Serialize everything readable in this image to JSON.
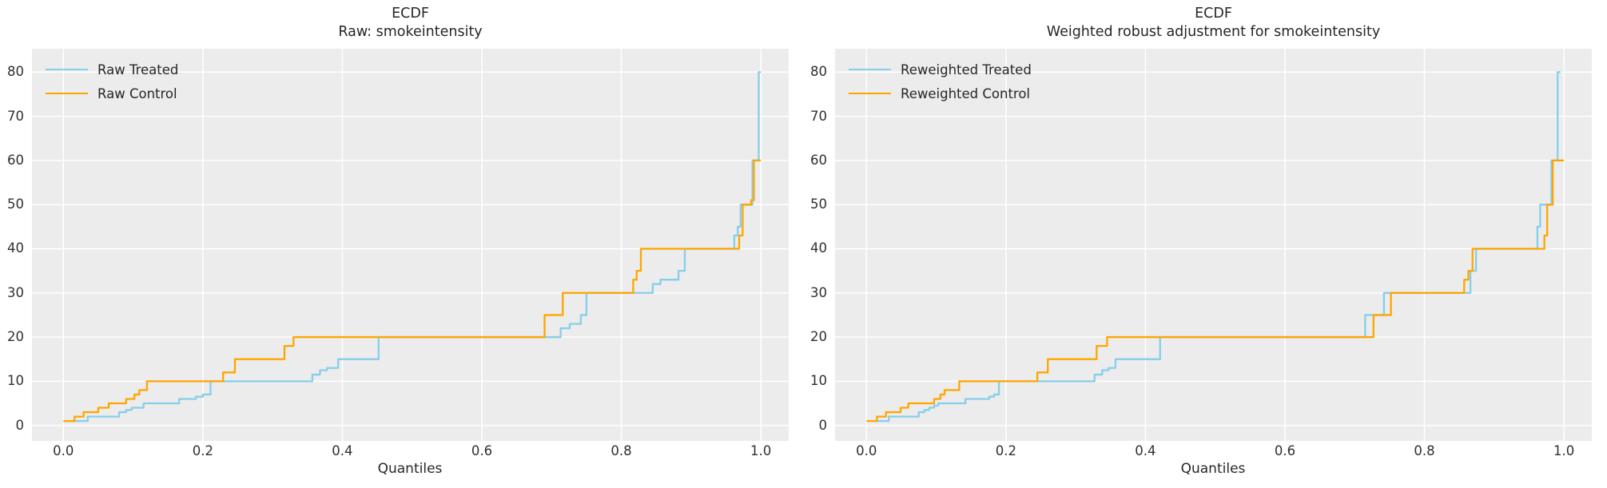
{
  "figure": {
    "background": "#ffffff",
    "plot_background": "#ececec",
    "grid_color": "#ffffff",
    "text_color": "#262626",
    "treated_color": "#87CEEB",
    "control_color": "#FFA500"
  },
  "chart_data": [
    {
      "type": "line",
      "subtype": "ecdf-step-quantile",
      "title": "ECDF",
      "subtitle": "Raw: smokeintensity",
      "xlabel": "Quantiles",
      "ylabel": "",
      "grid": true,
      "legend_position": "upper-left",
      "xlim": [
        -0.045,
        1.04
      ],
      "ylim": [
        -3.5,
        85.3
      ],
      "xticks": [
        0.0,
        0.2,
        0.4,
        0.6,
        0.8,
        1.0
      ],
      "xtick_labels": [
        "0.0",
        "0.2",
        "0.4",
        "0.6",
        "0.8",
        "1.0"
      ],
      "yticks": [
        0,
        10,
        20,
        30,
        40,
        50,
        60,
        70,
        80
      ],
      "ytick_labels": [
        "0",
        "10",
        "20",
        "30",
        "40",
        "50",
        "60",
        "70",
        "80"
      ],
      "series": [
        {
          "name": "Raw Treated",
          "color": "#87CEEB",
          "points": [
            [
              0.005,
              1
            ],
            [
              0.035,
              2
            ],
            [
              0.08,
              3
            ],
            [
              0.09,
              3.5
            ],
            [
              0.098,
              4
            ],
            [
              0.115,
              5
            ],
            [
              0.166,
              6
            ],
            [
              0.19,
              6.5
            ],
            [
              0.2,
              7
            ],
            [
              0.211,
              10
            ],
            [
              0.357,
              11.5
            ],
            [
              0.368,
              12.5
            ],
            [
              0.378,
              13
            ],
            [
              0.394,
              15
            ],
            [
              0.452,
              20
            ],
            [
              0.713,
              22
            ],
            [
              0.726,
              23
            ],
            [
              0.742,
              25
            ],
            [
              0.75,
              30
            ],
            [
              0.845,
              32
            ],
            [
              0.856,
              33
            ],
            [
              0.882,
              35
            ],
            [
              0.891,
              40
            ],
            [
              0.962,
              43
            ],
            [
              0.967,
              45
            ],
            [
              0.971,
              50
            ],
            [
              0.988,
              60
            ],
            [
              0.997,
              80
            ],
            [
              1.0,
              80
            ]
          ]
        },
        {
          "name": "Raw Control",
          "color": "#FFA500",
          "points": [
            [
              0.0,
              1
            ],
            [
              0.016,
              2
            ],
            [
              0.029,
              3
            ],
            [
              0.05,
              4
            ],
            [
              0.065,
              5
            ],
            [
              0.09,
              6
            ],
            [
              0.102,
              7
            ],
            [
              0.109,
              8
            ],
            [
              0.12,
              10
            ],
            [
              0.229,
              12
            ],
            [
              0.246,
              15
            ],
            [
              0.317,
              18
            ],
            [
              0.33,
              20
            ],
            [
              0.69,
              25
            ],
            [
              0.716,
              30
            ],
            [
              0.817,
              33
            ],
            [
              0.822,
              35
            ],
            [
              0.828,
              40
            ],
            [
              0.969,
              43
            ],
            [
              0.974,
              50
            ],
            [
              0.986,
              51
            ],
            [
              0.99,
              60
            ],
            [
              1.0,
              60
            ]
          ]
        }
      ]
    },
    {
      "type": "line",
      "subtype": "ecdf-step-quantile",
      "title": "ECDF",
      "subtitle": "Weighted robust adjustment for smokeintensity",
      "xlabel": "Quantiles",
      "ylabel": "",
      "grid": true,
      "legend_position": "upper-left",
      "xlim": [
        -0.045,
        1.04
      ],
      "ylim": [
        -3.5,
        85.3
      ],
      "xticks": [
        0.0,
        0.2,
        0.4,
        0.6,
        0.8,
        1.0
      ],
      "xtick_labels": [
        "0.0",
        "0.2",
        "0.4",
        "0.6",
        "0.8",
        "1.0"
      ],
      "yticks": [
        0,
        10,
        20,
        30,
        40,
        50,
        60,
        70,
        80
      ],
      "ytick_labels": [
        "0",
        "10",
        "20",
        "30",
        "40",
        "50",
        "60",
        "70",
        "80"
      ],
      "series": [
        {
          "name": "Reweighted Treated",
          "color": "#87CEEB",
          "points": [
            [
              0.01,
              1
            ],
            [
              0.032,
              2
            ],
            [
              0.075,
              3
            ],
            [
              0.083,
              3.5
            ],
            [
              0.09,
              4
            ],
            [
              0.097,
              4.5
            ],
            [
              0.103,
              5
            ],
            [
              0.142,
              6
            ],
            [
              0.176,
              6.5
            ],
            [
              0.183,
              7
            ],
            [
              0.19,
              10
            ],
            [
              0.327,
              11.5
            ],
            [
              0.338,
              12.5
            ],
            [
              0.347,
              13
            ],
            [
              0.357,
              15
            ],
            [
              0.421,
              20
            ],
            [
              0.715,
              25
            ],
            [
              0.742,
              30
            ],
            [
              0.866,
              35
            ],
            [
              0.874,
              40
            ],
            [
              0.962,
              45
            ],
            [
              0.966,
              50
            ],
            [
              0.982,
              60
            ],
            [
              0.991,
              80
            ],
            [
              0.995,
              80
            ]
          ]
        },
        {
          "name": "Reweighted Control",
          "color": "#FFA500",
          "points": [
            [
              0.0,
              1
            ],
            [
              0.015,
              2
            ],
            [
              0.028,
              3
            ],
            [
              0.049,
              4
            ],
            [
              0.06,
              5
            ],
            [
              0.097,
              6
            ],
            [
              0.106,
              7
            ],
            [
              0.112,
              8
            ],
            [
              0.133,
              10
            ],
            [
              0.245,
              12
            ],
            [
              0.26,
              15
            ],
            [
              0.33,
              18
            ],
            [
              0.345,
              20
            ],
            [
              0.727,
              25
            ],
            [
              0.752,
              30
            ],
            [
              0.857,
              33
            ],
            [
              0.863,
              35
            ],
            [
              0.869,
              40
            ],
            [
              0.972,
              43
            ],
            [
              0.976,
              50
            ],
            [
              0.984,
              60
            ],
            [
              1.0,
              60
            ]
          ]
        }
      ]
    }
  ],
  "layout_note": "two ECDF quantile step plots, y = smokeintensity value, x = quantiles"
}
